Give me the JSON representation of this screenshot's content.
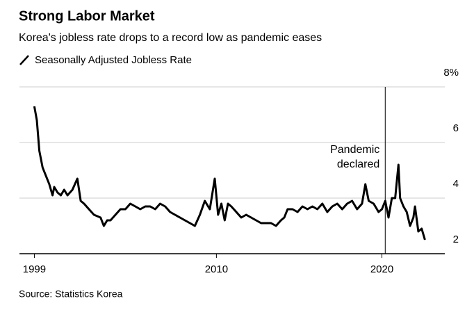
{
  "chart_data": {
    "type": "line",
    "title": "Strong Labor Market",
    "subtitle": "Korea's jobless rate drops to a record low as pandemic eases",
    "source": "Source: Statistics Korea",
    "series": [
      {
        "name": "Seasonally Adjusted Jobless Rate",
        "color": "#000000",
        "x": [
          1999.0,
          1999.15,
          1999.3,
          1999.5,
          1999.7,
          1999.9,
          2000.1,
          2000.2,
          2000.4,
          2000.6,
          2000.8,
          2001.0,
          2001.3,
          2001.6,
          2001.8,
          2002.0,
          2002.3,
          2002.6,
          2003.0,
          2003.2,
          2003.4,
          2003.6,
          2003.9,
          2004.2,
          2004.5,
          2004.8,
          2005.1,
          2005.4,
          2005.7,
          2006.0,
          2006.3,
          2006.6,
          2006.9,
          2007.2,
          2007.5,
          2007.8,
          2008.1,
          2008.4,
          2008.7,
          2009.0,
          2009.3,
          2009.6,
          2009.9,
          2010.1,
          2010.3,
          2010.5,
          2010.7,
          2010.9,
          2011.2,
          2011.5,
          2011.8,
          2012.1,
          2012.4,
          2012.7,
          2013.0,
          2013.3,
          2013.6,
          2013.9,
          2014.1,
          2014.3,
          2014.6,
          2014.9,
          2015.2,
          2015.5,
          2015.8,
          2016.1,
          2016.4,
          2016.7,
          2017.0,
          2017.3,
          2017.6,
          2017.9,
          2018.2,
          2018.5,
          2018.8,
          2019.0,
          2019.2,
          2019.5,
          2019.8,
          2020.0,
          2020.2,
          2020.4,
          2020.6,
          2020.8,
          2021.0,
          2021.1,
          2021.3,
          2021.5,
          2021.7,
          2021.9,
          2022.0,
          2022.2,
          2022.4,
          2022.6
        ],
        "values": [
          7.3,
          6.8,
          5.7,
          5.1,
          4.8,
          4.5,
          4.1,
          4.4,
          4.2,
          4.1,
          4.3,
          4.1,
          4.3,
          4.7,
          3.9,
          3.8,
          3.6,
          3.4,
          3.3,
          3.0,
          3.2,
          3.2,
          3.4,
          3.6,
          3.6,
          3.8,
          3.7,
          3.6,
          3.7,
          3.7,
          3.6,
          3.8,
          3.7,
          3.5,
          3.4,
          3.3,
          3.2,
          3.1,
          3.0,
          3.4,
          3.9,
          3.6,
          4.7,
          3.4,
          3.8,
          3.2,
          3.8,
          3.7,
          3.5,
          3.3,
          3.4,
          3.3,
          3.2,
          3.1,
          3.1,
          3.1,
          3.0,
          3.2,
          3.3,
          3.6,
          3.6,
          3.5,
          3.7,
          3.6,
          3.7,
          3.6,
          3.8,
          3.5,
          3.7,
          3.8,
          3.6,
          3.8,
          3.9,
          3.6,
          3.8,
          4.5,
          3.9,
          3.8,
          3.5,
          3.6,
          3.9,
          3.3,
          4.0,
          4.0,
          5.2,
          4.0,
          3.7,
          3.5,
          3.0,
          3.3,
          3.7,
          2.8,
          2.9,
          2.5
        ]
      }
    ],
    "annotation": {
      "lines": [
        "Pandemic",
        "declared"
      ],
      "x": 2020.2
    },
    "xlim": [
      1998.1,
      2023.8
    ],
    "xticks": [
      1999,
      2010,
      2020
    ],
    "ylim": [
      2,
      8
    ],
    "yticks": [
      2,
      4,
      6,
      {
        "value": 8,
        "label": "8%"
      }
    ],
    "grid": true
  }
}
